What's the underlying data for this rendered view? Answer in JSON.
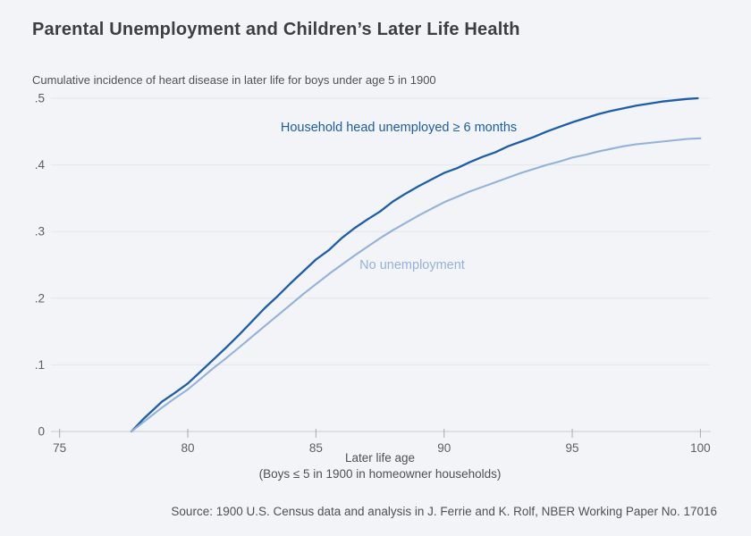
{
  "header": {
    "title": "Parental Unemployment and Children’s Later Life Health",
    "subtitle": "Cumulative incidence of heart disease in later life for boys under age 5 in 1900"
  },
  "footer": {
    "source": "Source: 1900 U.S. Census data and analysis in J. Ferrie and K. Rolf, NBER Working Paper No. 17016"
  },
  "colors": {
    "background": "#f2f4f7",
    "gridline": "#e3e6ec",
    "zero_line": "#c6cbd3",
    "tick": "#a6acb5",
    "tick_label": "#596066",
    "title_text": "#3b3e42"
  },
  "chart_data": {
    "type": "line",
    "title": "Parental Unemployment and Children’s Later Life Health",
    "subtitle": "Cumulative incidence of heart disease in later life for boys under age 5 in 1900",
    "xlabel": "Later life age",
    "xlabel_note": "(Boys ≤ 5 in 1900 in homeowner households)",
    "ylabel": "",
    "xlim": [
      75,
      100
    ],
    "ylim": [
      0,
      0.5
    ],
    "grid": true,
    "legend_position": "inline-labels",
    "x_tick_values": [
      75,
      80,
      85,
      90,
      95,
      100
    ],
    "x_tick_labels": [
      "75",
      "80",
      "85",
      "90",
      "95",
      "100"
    ],
    "y_tick_values": [
      0,
      0.1,
      0.2,
      0.3,
      0.4,
      0.5
    ],
    "y_tick_labels": [
      "0",
      ".1",
      ".2",
      ".3",
      ".4",
      ".5"
    ],
    "series": [
      {
        "name": "household-head-unemployed",
        "label": "Household head unemployed ≥ 6 months",
        "color": "#1d5da9",
        "stroke_width": 2.3,
        "points": [
          [
            77.8,
            0
          ],
          [
            78.3,
            0.02
          ],
          [
            79,
            0.045
          ],
          [
            79.5,
            0.058
          ],
          [
            80,
            0.072
          ],
          [
            80.5,
            0.09
          ],
          [
            81,
            0.108
          ],
          [
            81.5,
            0.126
          ],
          [
            82,
            0.145
          ],
          [
            82.5,
            0.165
          ],
          [
            83,
            0.185
          ],
          [
            83.5,
            0.203
          ],
          [
            84,
            0.222
          ],
          [
            84.5,
            0.24
          ],
          [
            85,
            0.258
          ],
          [
            85.5,
            0.272
          ],
          [
            86,
            0.29
          ],
          [
            86.5,
            0.305
          ],
          [
            87,
            0.318
          ],
          [
            87.5,
            0.33
          ],
          [
            88,
            0.345
          ],
          [
            88.5,
            0.357
          ],
          [
            89,
            0.368
          ],
          [
            89.5,
            0.378
          ],
          [
            90,
            0.388
          ],
          [
            90.5,
            0.395
          ],
          [
            91,
            0.404
          ],
          [
            91.5,
            0.412
          ],
          [
            92,
            0.419
          ],
          [
            92.5,
            0.428
          ],
          [
            93,
            0.435
          ],
          [
            93.5,
            0.442
          ],
          [
            94,
            0.45
          ],
          [
            94.5,
            0.457
          ],
          [
            95,
            0.464
          ],
          [
            95.5,
            0.47
          ],
          [
            96,
            0.476
          ],
          [
            96.5,
            0.481
          ],
          [
            97,
            0.485
          ],
          [
            97.5,
            0.489
          ],
          [
            98,
            0.492
          ],
          [
            98.5,
            0.495
          ],
          [
            99,
            0.497
          ],
          [
            99.5,
            0.499
          ],
          [
            99.9,
            0.5
          ]
        ]
      },
      {
        "name": "no-unemployment",
        "label": "No unemployment",
        "color": "#93b2d9",
        "stroke_width": 2.1,
        "points": [
          [
            77.8,
            0
          ],
          [
            78.3,
            0.015
          ],
          [
            79,
            0.036
          ],
          [
            79.5,
            0.05
          ],
          [
            80,
            0.063
          ],
          [
            80.5,
            0.079
          ],
          [
            81,
            0.095
          ],
          [
            81.5,
            0.11
          ],
          [
            82,
            0.126
          ],
          [
            82.5,
            0.142
          ],
          [
            83,
            0.158
          ],
          [
            83.5,
            0.174
          ],
          [
            84,
            0.19
          ],
          [
            84.5,
            0.206
          ],
          [
            85,
            0.221
          ],
          [
            85.5,
            0.236
          ],
          [
            86,
            0.25
          ],
          [
            86.5,
            0.264
          ],
          [
            87,
            0.277
          ],
          [
            87.5,
            0.29
          ],
          [
            88,
            0.302
          ],
          [
            88.5,
            0.313
          ],
          [
            89,
            0.324
          ],
          [
            89.5,
            0.334
          ],
          [
            90,
            0.344
          ],
          [
            90.5,
            0.352
          ],
          [
            91,
            0.36
          ],
          [
            91.5,
            0.367
          ],
          [
            92,
            0.374
          ],
          [
            92.5,
            0.381
          ],
          [
            93,
            0.388
          ],
          [
            93.5,
            0.394
          ],
          [
            94,
            0.4
          ],
          [
            94.5,
            0.405
          ],
          [
            95,
            0.411
          ],
          [
            95.5,
            0.415
          ],
          [
            96,
            0.42
          ],
          [
            96.5,
            0.424
          ],
          [
            97,
            0.428
          ],
          [
            97.5,
            0.431
          ],
          [
            98,
            0.433
          ],
          [
            98.5,
            0.435
          ],
          [
            99,
            0.437
          ],
          [
            99.5,
            0.439
          ],
          [
            100,
            0.44
          ]
        ]
      }
    ]
  }
}
